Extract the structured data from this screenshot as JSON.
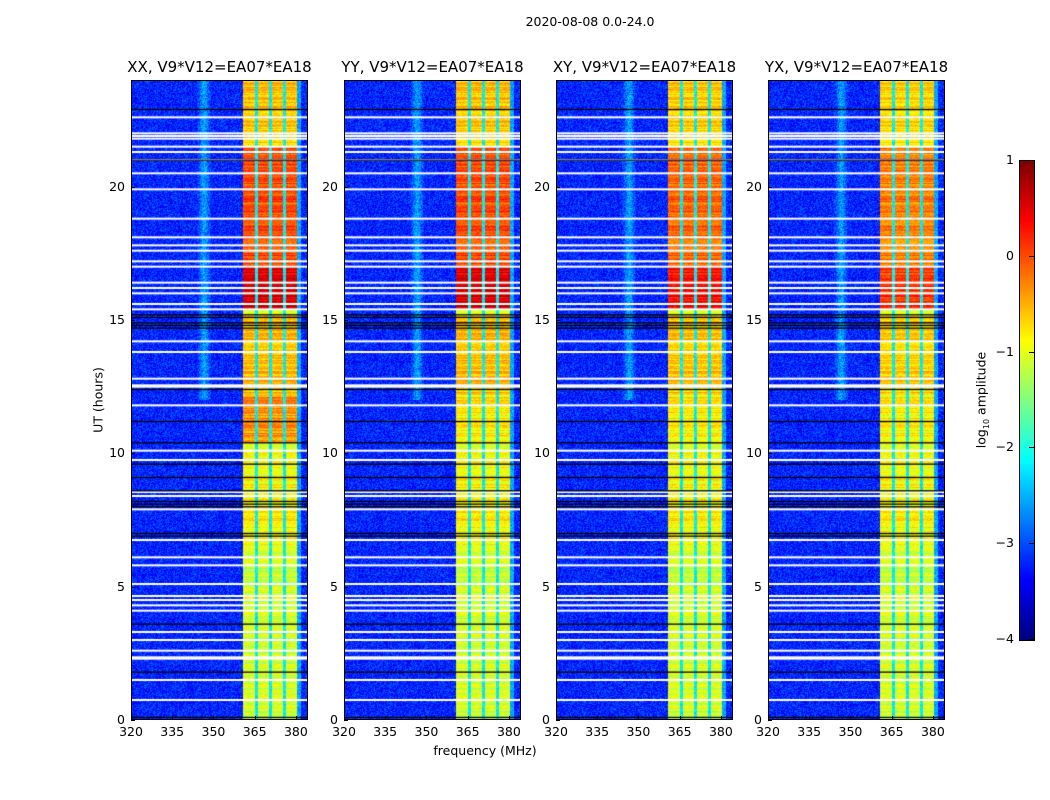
{
  "suptitle": "2020-08-08 0.0-24.0",
  "chart_data": {
    "type": "heatmap",
    "title": "2020-08-08 0.0-24.0",
    "xlabel": "frequency (MHz)",
    "ylabel": "UT (hours)",
    "xlim": [
      320,
      384.4
    ],
    "ylim": [
      0,
      24
    ],
    "xticks": [
      320,
      335,
      350,
      365,
      380
    ],
    "yticks": [
      0,
      5,
      10,
      15,
      20
    ],
    "panels": [
      {
        "title": "XX, V9*V12=EA07*EA18",
        "band_scale": 1.0,
        "high_10_12": true
      },
      {
        "title": "YY, V9*V12=EA07*EA18",
        "band_scale": 1.0,
        "high_10_12": false
      },
      {
        "title": "XY, V9*V12=EA07*EA18",
        "band_scale": 0.85,
        "high_10_12": false
      },
      {
        "title": "YX, V9*V12=EA07*EA18",
        "band_scale": 0.7,
        "high_10_12": false
      }
    ],
    "rfi_band_mhz": [
      360.7,
      380.4
    ],
    "subband_gaps_mhz": [
      365.5,
      370.6,
      375.6
    ],
    "background_log10_amplitude": -3.2,
    "band_level_segments": [
      {
        "ut": [
          0,
          6.6
        ],
        "level": -1.1
      },
      {
        "ut": [
          6.6,
          9.6
        ],
        "level": -0.85
      },
      {
        "ut": [
          9.6,
          10.4
        ],
        "level": -0.9
      },
      {
        "ut": [
          10.4,
          12.2
        ],
        "level": -0.35
      },
      {
        "ut": [
          12.2,
          15.2
        ],
        "level": -0.55
      },
      {
        "ut": [
          15.4,
          17.0
        ],
        "level": 0.55
      },
      {
        "ut": [
          17.0,
          21.5
        ],
        "level": 0.0
      },
      {
        "ut": [
          21.5,
          24
        ],
        "level": -0.6
      }
    ],
    "flagged_ut_white": [
      0.75,
      1.5,
      2.3,
      2.35,
      2.6,
      3.0,
      3.3,
      4.1,
      4.3,
      4.5,
      4.65,
      5.1,
      5.8,
      6.1,
      6.75,
      7.9,
      8.4,
      8.55,
      9.75,
      10.1,
      11.8,
      12.5,
      12.55,
      12.8,
      13.8,
      14.2,
      15.4,
      15.6,
      16.0,
      16.2,
      16.4,
      17.0,
      17.2,
      17.6,
      17.8,
      18.1,
      18.8,
      19.9,
      20.5,
      21.0,
      21.3,
      21.5,
      21.8,
      21.9,
      22.0,
      22.6
    ],
    "flagged_ut_black": [
      0.1,
      1.8,
      3.6,
      6.9,
      7.0,
      8.0,
      8.1,
      8.2,
      8.6,
      9.1,
      9.6,
      10.4,
      11.2,
      12.4,
      14.7,
      14.8,
      14.9,
      15.1,
      15.2,
      21.0,
      22.9
    ],
    "colorbar": {
      "label": "log10 amplitude",
      "label_main": "log",
      "label_sub": "10",
      "label_rest": " amplitude",
      "range": [
        -4,
        1
      ],
      "ticks": [
        "1",
        "0",
        "−1",
        "−2",
        "−3",
        "−4"
      ],
      "tick_values": [
        1,
        0,
        -1,
        -2,
        -3,
        -4
      ],
      "colormap": "jet"
    }
  }
}
